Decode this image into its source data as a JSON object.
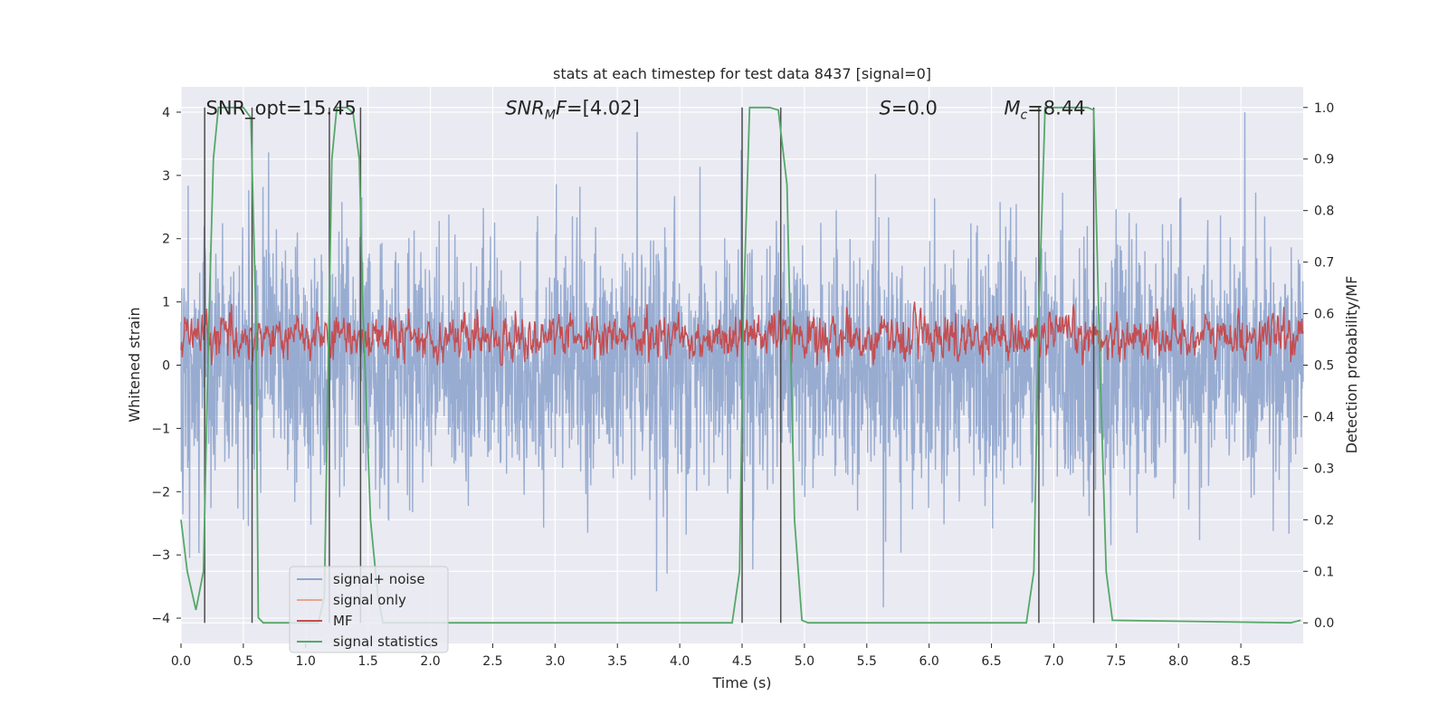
{
  "chart_data": {
    "type": "line",
    "title": "stats at each timestep for test data 8437 [signal=0]",
    "xlabel": "Time (s)",
    "ylabel": "Whitened strain",
    "ylabel_right": "Detection probability/MF",
    "xlim": [
      0.0,
      9.0
    ],
    "ylim": [
      -4.4,
      4.4
    ],
    "ylim_right": [
      -0.04,
      1.04
    ],
    "xticks": [
      0.0,
      0.5,
      1.0,
      1.5,
      2.0,
      2.5,
      3.0,
      3.5,
      4.0,
      4.5,
      5.0,
      5.5,
      6.0,
      6.5,
      7.0,
      7.5,
      8.0,
      8.5
    ],
    "xtick_labels": [
      "0.0",
      "0.5",
      "1.0",
      "1.5",
      "2.0",
      "2.5",
      "3.0",
      "3.5",
      "4.0",
      "4.5",
      "5.0",
      "5.5",
      "6.0",
      "6.5",
      "7.0",
      "7.5",
      "8.0",
      "8.5"
    ],
    "yticks": [
      -4,
      -3,
      -2,
      -1,
      0,
      1,
      2,
      3,
      4
    ],
    "ytick_labels": [
      "−4",
      "−3",
      "−2",
      "−1",
      "0",
      "1",
      "2",
      "3",
      "4"
    ],
    "yticks_right": [
      0.0,
      0.1,
      0.2,
      0.3,
      0.4,
      0.5,
      0.6,
      0.7,
      0.8,
      0.9,
      1.0
    ],
    "ytick_labels_right": [
      "0.0",
      "0.1",
      "0.2",
      "0.3",
      "0.4",
      "0.5",
      "0.6",
      "0.7",
      "0.8",
      "0.9",
      "1.0"
    ],
    "grid": true,
    "annotations": [
      {
        "text": "SNR_opt=15.45",
        "x": 0.2,
        "y": 4.05
      },
      {
        "italic": "SNR",
        "sub": "M",
        "rest_italic": "F",
        "tail": "=[4.02]",
        "x": 2.6,
        "y": 4.05
      },
      {
        "italic": "S",
        "tail": "=0.0",
        "x": 5.6,
        "y": 4.05
      },
      {
        "italic": "M",
        "sub": "c",
        "tail": "=8.44",
        "x": 6.6,
        "y": 4.05
      }
    ],
    "series": [
      {
        "name": "signal+ noise",
        "color": "#8fa5cd",
        "axis": "left",
        "kind": "noise",
        "amplitude_std": 1.0,
        "typical_envelope": [
          -2.6,
          2.7
        ],
        "max_abs": 4.0
      },
      {
        "name": "signal only",
        "color": "#e8a58b",
        "axis": "left",
        "kind": "flat",
        "values": []
      },
      {
        "name": "MF",
        "color": "#c44e52",
        "axis": "right",
        "kind": "noise",
        "baseline": 0.555,
        "spread": 0.035,
        "range": [
          0.5,
          0.63
        ]
      },
      {
        "name": "signal statistics",
        "color": "#55a868",
        "axis": "right",
        "kind": "line",
        "x": [
          0.0,
          0.05,
          0.12,
          0.18,
          0.22,
          0.26,
          0.3,
          0.36,
          0.45,
          0.5,
          0.56,
          0.6,
          0.62,
          0.66,
          0.7,
          1.1,
          1.15,
          1.18,
          1.21,
          1.25,
          1.33,
          1.38,
          1.43,
          1.46,
          1.52,
          1.58,
          1.62,
          1.68,
          1.72,
          4.42,
          4.48,
          4.51,
          4.56,
          4.72,
          4.79,
          4.86,
          4.92,
          4.98,
          5.03,
          6.78,
          6.84,
          6.88,
          6.93,
          7.27,
          7.32,
          7.37,
          7.42,
          7.47,
          8.9,
          8.98
        ],
        "y": [
          0.2,
          0.1,
          0.025,
          0.1,
          0.55,
          0.9,
          1.0,
          1.0,
          1.0,
          1.0,
          0.98,
          0.6,
          0.01,
          0.0,
          0.0,
          0.0,
          0.05,
          0.5,
          0.9,
          1.0,
          1.0,
          0.99,
          0.9,
          0.6,
          0.2,
          0.05,
          0.0,
          0.0,
          0.0,
          0.0,
          0.1,
          0.6,
          1.0,
          1.0,
          0.995,
          0.85,
          0.2,
          0.005,
          0.0,
          0.0,
          0.1,
          0.6,
          1.0,
          1.0,
          0.995,
          0.5,
          0.1,
          0.005,
          0.0,
          0.005
        ]
      }
    ],
    "vlines": [
      {
        "x": 0.19,
        "y0": 0.0,
        "y1": 1.0
      },
      {
        "x": 0.57,
        "y0": 0.0,
        "y1": 1.0
      },
      {
        "x": 1.19,
        "y0": 0.0,
        "y1": 1.0
      },
      {
        "x": 1.44,
        "y0": 0.0,
        "y1": 1.0
      },
      {
        "x": 4.5,
        "y0": 0.0,
        "y1": 1.0
      },
      {
        "x": 4.81,
        "y0": 0.0,
        "y1": 1.0
      },
      {
        "x": 6.88,
        "y0": 0.0,
        "y1": 1.0
      },
      {
        "x": 7.32,
        "y0": 0.0,
        "y1": 1.0
      }
    ],
    "legend": {
      "location": "lower-left",
      "entries": [
        "signal+ noise",
        "signal only",
        "MF",
        "signal statistics"
      ]
    }
  }
}
